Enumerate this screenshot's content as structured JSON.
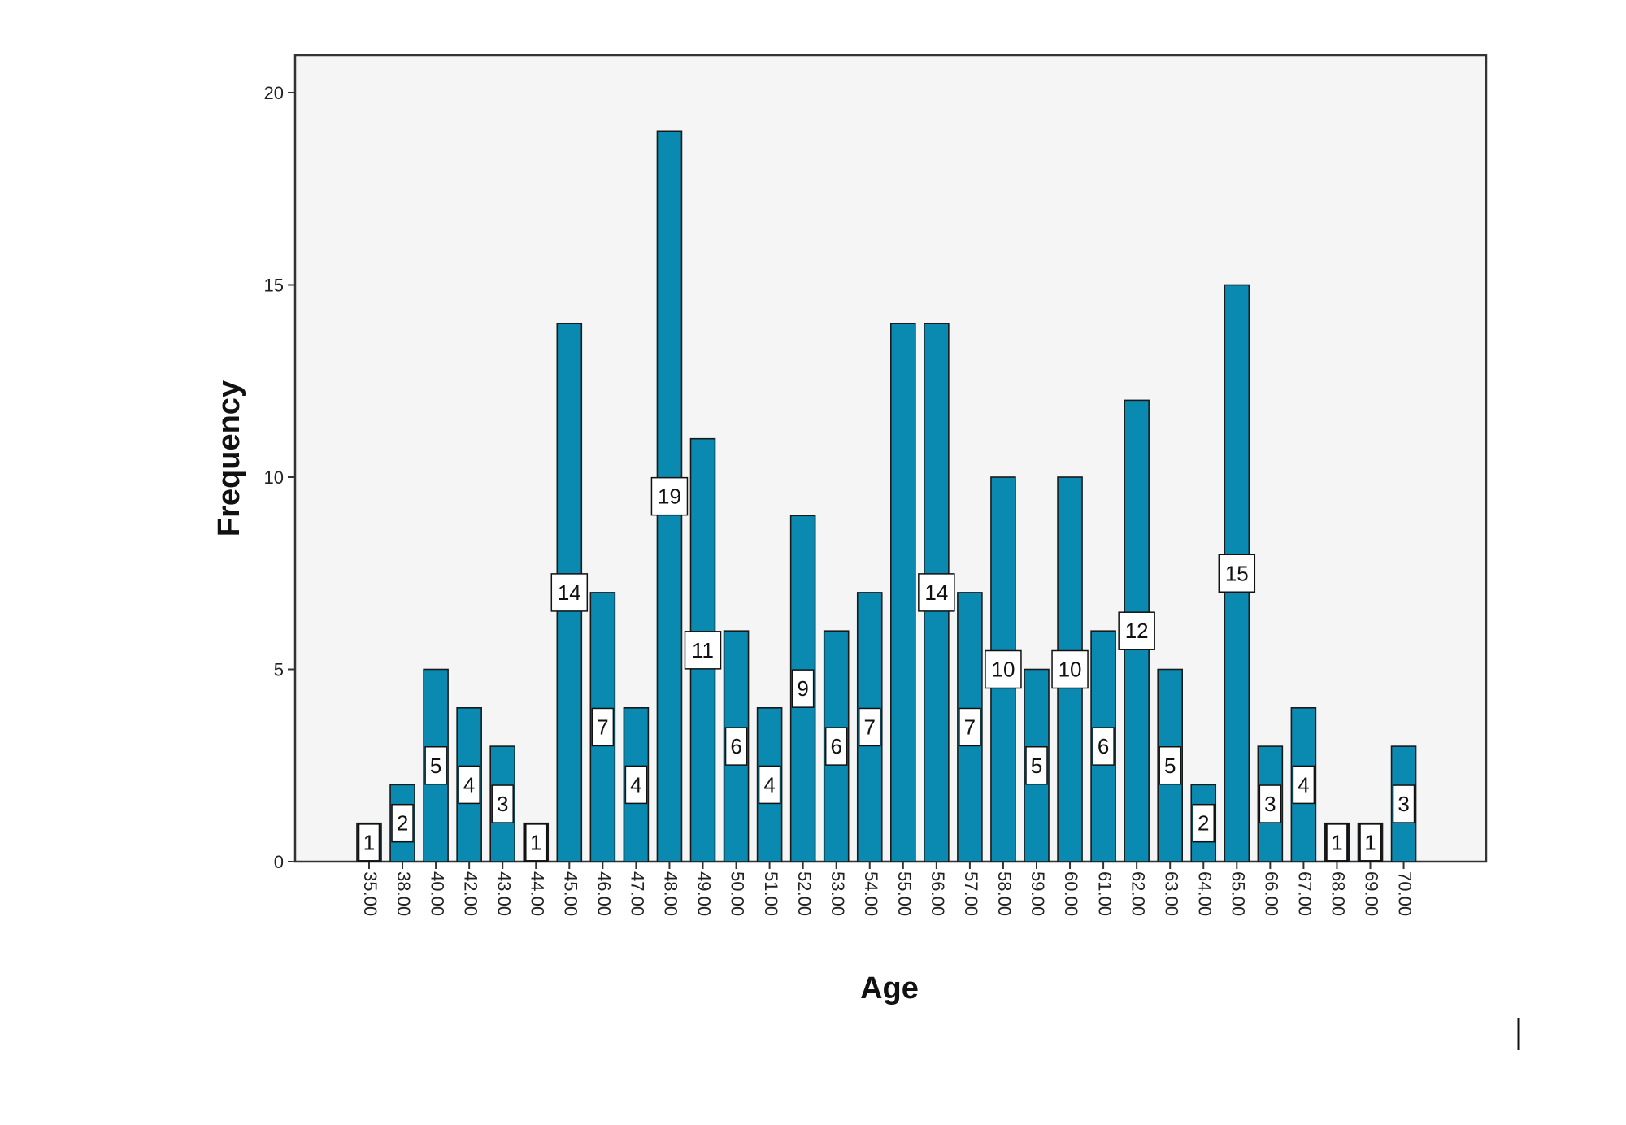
{
  "chart_data": {
    "type": "bar",
    "title": "",
    "xlabel": "Age",
    "ylabel": "Frequency",
    "ylim": [
      0,
      21
    ],
    "yticks": [
      "0",
      "5",
      "10",
      "15",
      "20"
    ],
    "grid": false,
    "legend": "none",
    "colors": {
      "bar": "#0a8ab0",
      "plot_background": "#f5f5f5",
      "axis": "#333333"
    },
    "categories": [
      "35.00",
      "38.00",
      "40.00",
      "42.00",
      "43.00",
      "44.00",
      "45.00",
      "46.00",
      "47.00",
      "48.00",
      "49.00",
      "50.00",
      "51.00",
      "52.00",
      "53.00",
      "54.00",
      "55.00",
      "56.00",
      "57.00",
      "58.00",
      "59.00",
      "60.00",
      "61.00",
      "62.00",
      "63.00",
      "64.00",
      "65.00",
      "66.00",
      "67.00",
      "68.00",
      "69.00",
      "70.00"
    ],
    "values": [
      1,
      2,
      5,
      4,
      3,
      1,
      14,
      7,
      4,
      19,
      11,
      6,
      4,
      9,
      6,
      7,
      14,
      14,
      7,
      10,
      5,
      10,
      6,
      12,
      5,
      2,
      15,
      3,
      4,
      1,
      1,
      3
    ],
    "data_labels": [
      "1",
      "2",
      "5",
      "4",
      "3",
      "1",
      "14",
      "7",
      "4",
      "19",
      "11",
      "6",
      "4",
      "9",
      "6",
      "7",
      "",
      "14",
      "7",
      "10",
      "5",
      "10",
      "6",
      "12",
      "5",
      "2",
      "15",
      "3",
      "4",
      "1",
      "1",
      "3"
    ]
  }
}
